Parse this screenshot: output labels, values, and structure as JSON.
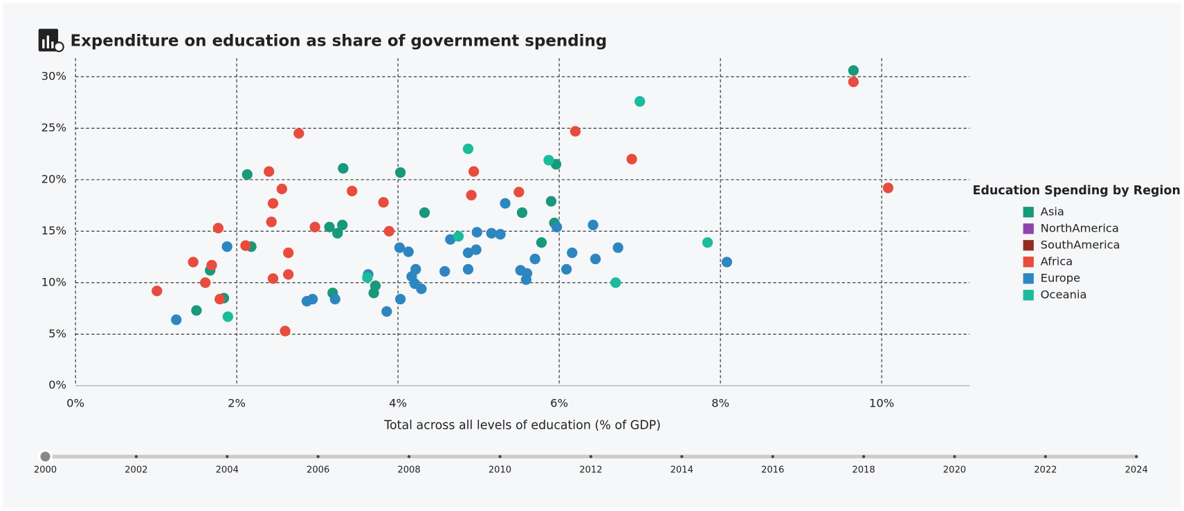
{
  "chart_data": {
    "type": "scatter",
    "title": "Expenditure on education as share of government spending",
    "x_label": "Total across all levels of education (% of GDP)",
    "legend_title": "Education Spending by Region",
    "legend": "right",
    "grid": true,
    "xlim": [
      0,
      11.09
    ],
    "ylim": [
      0,
      31.8
    ],
    "xticks": [
      {
        "value": 0,
        "label": "0%"
      },
      {
        "value": 2,
        "label": "2%"
      },
      {
        "value": 4,
        "label": "4%"
      },
      {
        "value": 6,
        "label": "6%"
      },
      {
        "value": 8,
        "label": "8%"
      },
      {
        "value": 10,
        "label": "10%"
      }
    ],
    "yticks": [
      {
        "value": 0,
        "label": "0%"
      },
      {
        "value": 5,
        "label": "5%"
      },
      {
        "value": 10,
        "label": "10%"
      },
      {
        "value": 15,
        "label": "15%"
      },
      {
        "value": 20,
        "label": "20%"
      },
      {
        "value": 25,
        "label": "25%"
      },
      {
        "value": 30,
        "label": "30%"
      }
    ],
    "series": [
      {
        "name": "Asia",
        "color": "#17997a",
        "x": [
          9.65,
          2.13,
          2.18,
          3.32,
          4.03,
          4.33,
          3.15,
          3.25,
          3.31,
          1.67,
          1.5,
          1.84,
          3.19,
          3.72,
          3.7,
          5.54,
          5.9,
          5.96,
          5.94,
          5.78
        ],
        "values": [
          30.6,
          20.5,
          13.5,
          21.1,
          20.7,
          16.8,
          15.4,
          14.8,
          15.6,
          11.2,
          7.3,
          8.5,
          9.0,
          9.7,
          9.0,
          16.8,
          17.9,
          21.5,
          15.8,
          13.9
        ]
      },
      {
        "name": "NorthAmerica",
        "color": "#8e44ad",
        "x": [],
        "values": []
      },
      {
        "name": "SouthAmerica",
        "color": "#922b21",
        "x": [],
        "values": []
      },
      {
        "name": "Africa",
        "color": "#e74c3c",
        "x": [
          9.65,
          10.08,
          2.77,
          6.2,
          6.9,
          2.4,
          4.94,
          2.56,
          3.43,
          2.45,
          3.82,
          4.91,
          5.5,
          2.43,
          2.97,
          3.89,
          1.77,
          2.11,
          2.64,
          1.46,
          1.69,
          1.61,
          2.45,
          2.64,
          1.01,
          1.79,
          2.6
        ],
        "values": [
          29.5,
          19.2,
          24.5,
          24.7,
          22.0,
          20.8,
          20.8,
          19.1,
          18.9,
          17.7,
          17.8,
          18.5,
          18.8,
          15.9,
          15.4,
          15.0,
          15.3,
          13.6,
          12.9,
          12.0,
          11.7,
          10.0,
          10.4,
          10.8,
          9.2,
          8.4,
          5.3
        ]
      },
      {
        "name": "Europe",
        "color": "#2e86c1",
        "x": [
          1.88,
          1.25,
          2.87,
          2.94,
          3.22,
          3.63,
          3.86,
          4.03,
          4.02,
          4.13,
          4.22,
          4.17,
          4.21,
          4.29,
          4.58,
          4.65,
          4.87,
          4.97,
          4.87,
          4.98,
          5.16,
          5.27,
          5.33,
          5.52,
          5.6,
          5.59,
          5.7,
          5.97,
          6.09,
          6.16,
          6.42,
          6.45,
          6.73,
          8.08
        ],
        "values": [
          13.5,
          6.4,
          8.2,
          8.4,
          8.4,
          10.8,
          7.2,
          8.4,
          13.4,
          13.0,
          11.3,
          10.6,
          9.9,
          9.4,
          11.1,
          14.2,
          12.9,
          13.2,
          11.3,
          14.9,
          14.8,
          14.7,
          17.7,
          11.2,
          10.9,
          10.3,
          12.3,
          15.4,
          11.3,
          12.9,
          15.6,
          12.3,
          13.4,
          12.0
        ]
      },
      {
        "name": "Oceania",
        "color": "#1abc9c",
        "x": [
          7.0,
          4.87,
          5.87,
          4.75,
          7.84,
          6.7,
          1.89,
          3.62
        ],
        "values": [
          27.6,
          23.0,
          21.9,
          14.5,
          13.9,
          10.0,
          6.7,
          10.5
        ]
      }
    ]
  },
  "timeline": {
    "years": [
      2000,
      2002,
      2004,
      2006,
      2008,
      2010,
      2012,
      2014,
      2016,
      2018,
      2020,
      2022,
      2024
    ]
  }
}
